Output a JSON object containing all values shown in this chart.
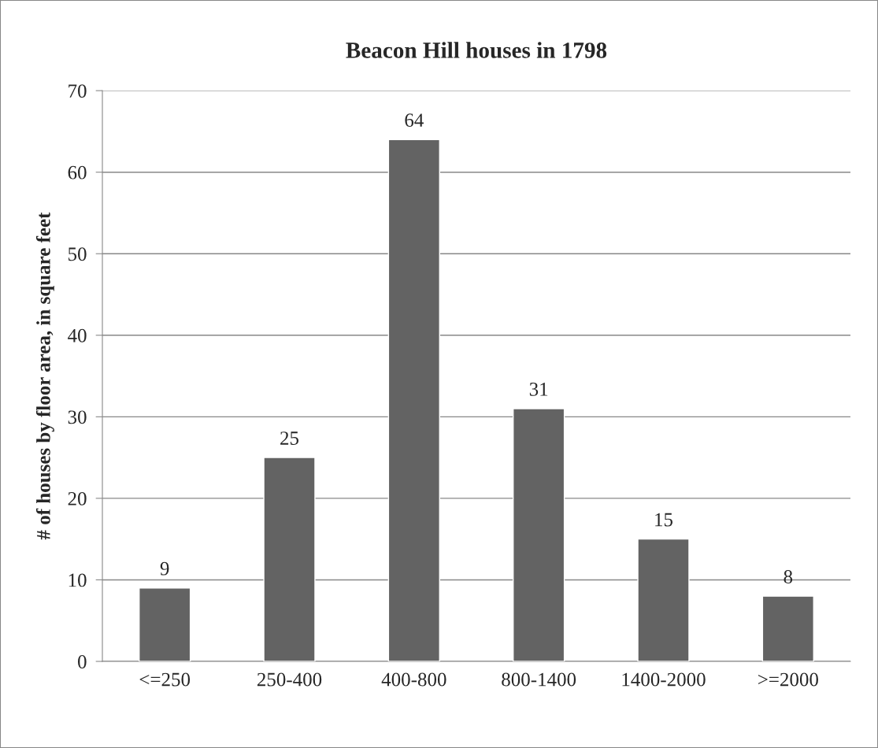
{
  "chart_data": {
    "type": "bar",
    "title": "Beacon Hill houses in 1798",
    "ylabel": "# of houses by floor area, in square feet",
    "categories": [
      "<=250",
      "250-400",
      "400-800",
      "800-1400",
      "1400-2000",
      ">=2000"
    ],
    "values": [
      9,
      25,
      64,
      31,
      15,
      8
    ],
    "color": "#636363",
    "ylim": [
      0,
      70
    ],
    "yticks": [
      0,
      10,
      20,
      30,
      40,
      50,
      60,
      70
    ],
    "grid": "y",
    "data_labels": true,
    "legend": false
  }
}
